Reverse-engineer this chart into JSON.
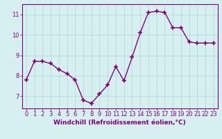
{
  "x": [
    0,
    1,
    2,
    3,
    4,
    5,
    6,
    7,
    8,
    9,
    10,
    11,
    12,
    13,
    14,
    15,
    16,
    17,
    18,
    19,
    20,
    21,
    22,
    23
  ],
  "y": [
    7.8,
    8.7,
    8.7,
    8.6,
    8.3,
    8.1,
    7.8,
    6.8,
    6.65,
    7.1,
    7.55,
    8.45,
    7.75,
    8.9,
    10.1,
    11.1,
    11.15,
    11.1,
    10.35,
    10.35,
    9.65,
    9.6,
    9.6,
    9.6
  ],
  "line_color": "#800080",
  "marker": "+",
  "marker_size": 4,
  "marker_lw": 1.2,
  "linewidth": 1.0,
  "bg_color": "#d6f0f0",
  "grid_color": "#b8d8d8",
  "xlabel": "Windchill (Refroidissement éolien,°C)",
  "xlabel_color": "#800080",
  "xlabel_fontsize": 6.5,
  "tick_color": "#800080",
  "tick_fontsize": 6.0,
  "yticks": [
    7,
    8,
    9,
    10,
    11
  ],
  "ylim": [
    6.4,
    11.5
  ],
  "xlim": [
    -0.5,
    23.5
  ],
  "spine_color": "#800080"
}
